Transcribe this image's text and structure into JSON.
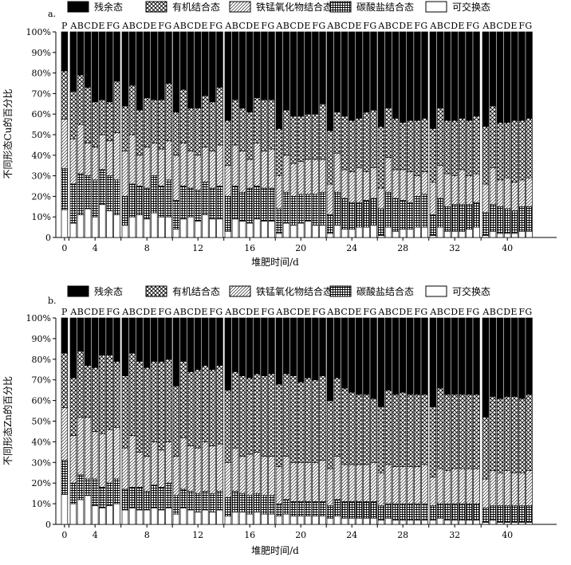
{
  "legend_labels": [
    "残余态",
    "有机结合态",
    "铁锰氧化物结合态",
    "碳酸盐结合态",
    "可交换态"
  ],
  "colors": {
    "ink": "#000000",
    "paper": "#ffffff"
  },
  "chart_data": [
    {
      "panel_label": "a.",
      "type": "bar",
      "stacked": true,
      "ylabel": "不同形态Cu的百分比",
      "xlabel": "堆肥时间/d",
      "ylim": [
        0,
        100
      ],
      "y_ticks": [
        "0",
        "10%",
        "20%",
        "30%",
        "40%",
        "50%",
        "60%",
        "70%",
        "80%",
        "90%",
        "100%"
      ],
      "group_labels": [
        "0",
        "4",
        "8",
        "12",
        "16",
        "20",
        "24",
        "28",
        "32",
        "40"
      ],
      "top_labels": [
        "P",
        "ABCDE",
        "FG",
        "ABCDE",
        "FG",
        "ABCDE",
        "FG",
        "ABCDE",
        "FG",
        "ABCDE",
        "FG",
        "ABCDE",
        "FG",
        "ABCDE",
        "FG",
        "ABCDE",
        "FG",
        "ABCDE",
        "FG"
      ],
      "series_order": [
        "可交换态",
        "碳酸盐结合态",
        "铁锰氧化物结合态",
        "有机结合态",
        "残余态"
      ],
      "groups": [
        {
          "day": "0",
          "bars": [
            [
              13.5,
              33.5,
              57.5,
              81
            ]
          ]
        },
        {
          "day": "4",
          "bars": [
            [
              7,
              26,
              48,
              71
            ],
            [
              11,
              31,
              55,
              79
            ],
            [
              14,
              30,
              46,
              73
            ],
            [
              10,
              28,
              44,
              66
            ],
            [
              16,
              33,
              50,
              67
            ],
            [
              13,
              30,
              47,
              66
            ],
            [
              11,
              28,
              51,
              76
            ]
          ]
        },
        {
          "day": "8",
          "bars": [
            [
              6,
              20,
              42,
              64
            ],
            [
              10,
              26,
              50,
              74
            ],
            [
              11,
              25,
              40,
              62
            ],
            [
              9,
              24,
              44,
              68
            ],
            [
              12,
              30,
              46,
              67
            ],
            [
              10,
              25,
              43,
              67
            ],
            [
              10,
              28,
              47,
              75
            ]
          ]
        },
        {
          "day": "12",
          "bars": [
            [
              4,
              18,
              40,
              61
            ],
            [
              9,
              25,
              46,
              72
            ],
            [
              10,
              24,
              42,
              63
            ],
            [
              8,
              23,
              40,
              63
            ],
            [
              11,
              27,
              44,
              69
            ],
            [
              9,
              24,
              42,
              66
            ],
            [
              9,
              25,
              45,
              73
            ]
          ]
        },
        {
          "day": "16",
          "bars": [
            [
              3,
              20,
              35,
              57
            ],
            [
              9,
              25,
              45,
              67
            ],
            [
              8,
              22,
              42,
              63
            ],
            [
              7,
              24,
              38,
              61
            ],
            [
              9,
              25,
              46,
              68
            ],
            [
              8,
              24,
              42,
              67
            ],
            [
              8,
              24,
              43,
              67
            ]
          ]
        },
        {
          "day": "20",
          "bars": [
            [
              2,
              14,
              30,
              53
            ],
            [
              7,
              22,
              40,
              62
            ],
            [
              6,
              20,
              36,
              59
            ],
            [
              7,
              21,
              37,
              59
            ],
            [
              8,
              21,
              38,
              60
            ],
            [
              6,
              21,
              38,
              60
            ],
            [
              6,
              22,
              38,
              65
            ]
          ]
        },
        {
          "day": "24",
          "bars": [
            [
              2,
              11,
              26,
              52
            ],
            [
              6,
              22,
              41,
              61
            ],
            [
              4,
              19,
              33,
              59
            ],
            [
              4,
              17,
              32,
              57
            ],
            [
              5,
              17,
              34,
              58
            ],
            [
              5,
              18,
              32,
              61
            ],
            [
              6,
              19,
              34,
              62
            ]
          ]
        },
        {
          "day": "28",
          "bars": [
            [
              1,
              14,
              24,
              54
            ],
            [
              5,
              22,
              39,
              63
            ],
            [
              3,
              19,
              33,
              58
            ],
            [
              4,
              18,
              33,
              56
            ],
            [
              4,
              17,
              32,
              57
            ],
            [
              5,
              20,
              30,
              57
            ],
            [
              5,
              21,
              32,
              58
            ]
          ]
        },
        {
          "day": "32",
          "bars": [
            [
              1,
              11,
              27,
              53
            ],
            [
              5,
              19,
              35,
              63
            ],
            [
              3,
              15,
              31,
              57
            ],
            [
              3,
              16,
              30,
              57
            ],
            [
              3,
              16,
              33,
              58
            ],
            [
              4,
              16,
              30,
              57
            ],
            [
              5,
              17,
              31,
              59
            ]
          ]
        },
        {
          "day": "40",
          "bars": [
            [
              1,
              12,
              26,
              54
            ],
            [
              3,
              16,
              34,
              64
            ],
            [
              2,
              15,
              28,
              56
            ],
            [
              2,
              14,
              29,
              56
            ],
            [
              2,
              13,
              27,
              57
            ],
            [
              3,
              15,
              28,
              57
            ],
            [
              3,
              15,
              29,
              58
            ]
          ]
        }
      ]
    },
    {
      "panel_label": "b.",
      "type": "bar",
      "stacked": true,
      "ylabel": "不同形态Zn的百分比",
      "xlabel": "堆肥时间/d",
      "ylim": [
        0,
        100
      ],
      "y_ticks": [
        "0",
        "10%",
        "20%",
        "30%",
        "40%",
        "50%",
        "60%",
        "70%",
        "80%",
        "90%",
        "100%"
      ],
      "group_labels": [
        "0",
        "4",
        "8",
        "12",
        "16",
        "20",
        "24",
        "28",
        "32",
        "40"
      ],
      "top_labels": [
        "P",
        "ABCDE",
        "FG",
        "ABCDE",
        "FG",
        "ABCDE",
        "FG",
        "ABCDE",
        "FG",
        "ABCDE",
        "FG",
        "ABCDE",
        "FG",
        "ABCDE",
        "FG",
        "ABCDE",
        "FG",
        "ABCDE",
        "FG"
      ],
      "series_order": [
        "可交换态",
        "碳酸盐结合态",
        "铁锰氧化物结合态",
        "有机结合态",
        "残余态"
      ],
      "groups": [
        {
          "day": "0",
          "bars": [
            [
              14.5,
              31,
              56.5,
              83
            ]
          ]
        },
        {
          "day": "4",
          "bars": [
            [
              10,
              20,
              43,
              71
            ],
            [
              12,
              24,
              52,
              84
            ],
            [
              14,
              22,
              52,
              77
            ],
            [
              9,
              22,
              45,
              76
            ],
            [
              8,
              18,
              44,
              82
            ],
            [
              9,
              20,
              46,
              82
            ],
            [
              10,
              22,
              47,
              79
            ]
          ]
        },
        {
          "day": "8",
          "bars": [
            [
              7,
              17,
              37,
              72
            ],
            [
              8,
              18,
              43,
              83
            ],
            [
              7,
              18,
              35,
              79
            ],
            [
              7,
              16,
              33,
              76
            ],
            [
              8,
              19,
              40,
              79
            ],
            [
              7,
              18,
              36,
              79
            ],
            [
              8,
              20,
              40,
              80
            ]
          ]
        },
        {
          "day": "12",
          "bars": [
            [
              5,
              14,
              33,
              67
            ],
            [
              8,
              17,
              42,
              79
            ],
            [
              7,
              16,
              38,
              74
            ],
            [
              6,
              15,
              37,
              75
            ],
            [
              7,
              16,
              40,
              77
            ],
            [
              6,
              15,
              38,
              75
            ],
            [
              7,
              16,
              39,
              77
            ]
          ]
        },
        {
          "day": "16",
          "bars": [
            [
              4,
              13,
              30,
              65
            ],
            [
              6,
              16,
              37,
              74
            ],
            [
              6,
              15,
              33,
              72
            ],
            [
              5,
              14,
              34,
              71
            ],
            [
              6,
              15,
              35,
              73
            ],
            [
              5,
              14,
              33,
              72
            ],
            [
              5,
              14,
              33,
              73
            ]
          ]
        },
        {
          "day": "20",
          "bars": [
            [
              4,
              10,
              28,
              68
            ],
            [
              5,
              12,
              33,
              73
            ],
            [
              4,
              11,
              30,
              72
            ],
            [
              4,
              11,
              30,
              69
            ],
            [
              4,
              11,
              30,
              71
            ],
            [
              4,
              11,
              30,
              70
            ],
            [
              4,
              11,
              31,
              72
            ]
          ]
        },
        {
          "day": "24",
          "bars": [
            [
              3,
              9,
              27,
              60
            ],
            [
              4,
              12,
              33,
              71
            ],
            [
              3,
              11,
              29,
              66
            ],
            [
              3,
              11,
              29,
              64
            ],
            [
              3,
              11,
              29,
              63
            ],
            [
              3,
              11,
              29,
              63
            ],
            [
              3,
              11,
              30,
              61
            ]
          ]
        },
        {
          "day": "28",
          "bars": [
            [
              2,
              9,
              25,
              57
            ],
            [
              3,
              10,
              29,
              65
            ],
            [
              2,
              10,
              28,
              63
            ],
            [
              2,
              10,
              28,
              64
            ],
            [
              2,
              10,
              28,
              63
            ],
            [
              2,
              10,
              28,
              63
            ],
            [
              2,
              10,
              29,
              63
            ]
          ]
        },
        {
          "day": "32",
          "bars": [
            [
              2,
              9,
              23,
              57
            ],
            [
              3,
              10,
              27,
              66
            ],
            [
              2,
              10,
              26,
              63
            ],
            [
              2,
              10,
              27,
              63
            ],
            [
              2,
              10,
              27,
              63
            ],
            [
              2,
              10,
              27,
              63
            ],
            [
              2,
              10,
              27,
              63
            ]
          ]
        },
        {
          "day": "40",
          "bars": [
            [
              1,
              8,
              22,
              52
            ],
            [
              2,
              9,
              26,
              62
            ],
            [
              1,
              9,
              25,
              61
            ],
            [
              1,
              9,
              26,
              62
            ],
            [
              1,
              9,
              25,
              62
            ],
            [
              1,
              9,
              25,
              61
            ],
            [
              1,
              9,
              26,
              63
            ]
          ]
        }
      ]
    }
  ]
}
